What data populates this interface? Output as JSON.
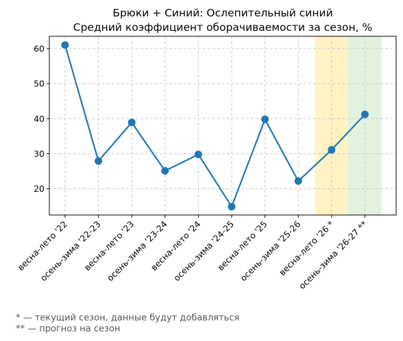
{
  "chart_data": {
    "type": "line",
    "title": "Брюки + Синий: Ослепительный синий",
    "subtitle": "Средний коэффициент оборачиваемости за сезон, %",
    "xlabel": "",
    "ylabel": "",
    "categories": [
      "весна-лето '22",
      "осень-зима '22-23",
      "весна-лето '23",
      "осень-зима '23-24",
      "весна-лето '24",
      "осень-зима '24-25",
      "весна-лето '25",
      "осень-зима '25-26",
      "весна-лето '26 *",
      "осень-зима '26-27 **"
    ],
    "series": [
      {
        "values": [
          61.0,
          27.9,
          38.9,
          25.1,
          29.8,
          14.9,
          39.8,
          22.2,
          31.1,
          41.2
        ]
      }
    ],
    "ylim": [
      12.5,
      63.5
    ],
    "yticks": [
      20,
      30,
      40,
      50,
      60
    ],
    "grid": true,
    "line_color": "#1f77b4",
    "highlights": [
      {
        "category": "весна-лето '26 *",
        "color": "#fff3c4"
      },
      {
        "category": "осень-зима '26-27 **",
        "color": "#e3f1df"
      }
    ]
  },
  "footnotes": {
    "current": "* — текущий сезон, данные будут добавляться",
    "forecast": "** — прогноз на сезон"
  }
}
